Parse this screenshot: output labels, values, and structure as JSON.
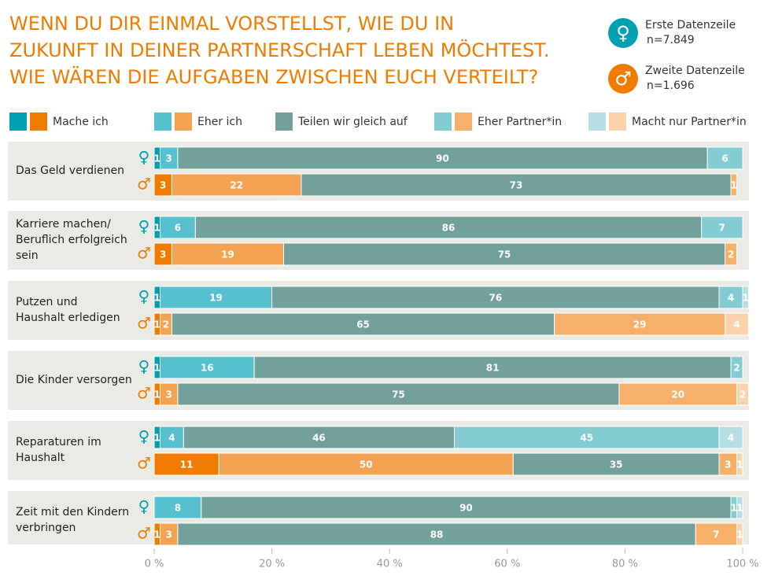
{
  "chart_data": {
    "type": "stacked-bar-pairs",
    "title": [
      "WENN DU DIR EINMAL VORSTELLST, WIE DU IN",
      "ZUKUNFT IN DEINER PARTNERSCHAFT LEBEN MÖCHTEST.",
      "WIE WÄREN DIE AUFGABEN ZWISCHEN EUCH VERTEILT?"
    ],
    "rows": [
      {
        "name": "Erste Datenzeile",
        "n": "n=7.849",
        "color": "#00a0b0"
      },
      {
        "name": "Zweite Datenzeile",
        "n": "n=1.696",
        "color": "#ef7c00"
      }
    ],
    "categories": [
      [
        "Das Geld verdienen"
      ],
      [
        "Karriere machen/",
        "Beruflich erfolgreich",
        "sein"
      ],
      [
        "Putzen und",
        "Haushalt erledigen"
      ],
      [
        "Die Kinder versorgen"
      ],
      [
        "Reparaturen im",
        "Haushalt"
      ],
      [
        "Zeit mit den Kindern",
        "verbringen"
      ]
    ],
    "series": [
      {
        "name": "Mache ich",
        "color": [
          "#00a0b0",
          "#ef7c00"
        ],
        "values": [
          [
            1,
            3
          ],
          [
            1,
            3
          ],
          [
            1,
            1
          ],
          [
            1,
            1
          ],
          [
            1,
            11
          ],
          [
            null,
            1
          ]
        ]
      },
      {
        "name": "Eher ich",
        "color": [
          "#57c0cf",
          "#f4a352"
        ],
        "values": [
          [
            3,
            22
          ],
          [
            6,
            19
          ],
          [
            19,
            2
          ],
          [
            16,
            3
          ],
          [
            4,
            50
          ],
          [
            8,
            3
          ]
        ]
      },
      {
        "name": "Teilen wir gleich auf",
        "color": [
          "#72a09b",
          "#72a09b"
        ],
        "values": [
          [
            90,
            73
          ],
          [
            86,
            75
          ],
          [
            76,
            65
          ],
          [
            81,
            75
          ],
          [
            46,
            35
          ],
          [
            90,
            88
          ]
        ]
      },
      {
        "name": "Eher Partner*in",
        "color": [
          "#84ccd4",
          "#f7b06a"
        ],
        "values": [
          [
            6,
            1
          ],
          [
            7,
            2
          ],
          [
            4,
            29
          ],
          [
            2,
            20
          ],
          [
            45,
            3
          ],
          [
            1,
            7
          ]
        ]
      },
      {
        "name": "Macht nur Partner*in",
        "color": [
          "#b5dfe4",
          "#fad3ad"
        ],
        "values": [
          [
            null,
            null
          ],
          [
            null,
            null
          ],
          [
            1,
            4
          ],
          [
            null,
            2
          ],
          [
            4,
            1
          ],
          [
            1,
            1
          ]
        ]
      }
    ],
    "xlim": [
      0,
      100
    ],
    "xticks": [
      {
        "value": 0,
        "label": "0 %"
      },
      {
        "value": 20,
        "label": "20 %"
      },
      {
        "value": 40,
        "label": "40 %"
      },
      {
        "value": 60,
        "label": "60 %"
      },
      {
        "value": 80,
        "label": "80 %"
      },
      {
        "value": 100,
        "label": "100 %"
      }
    ]
  }
}
